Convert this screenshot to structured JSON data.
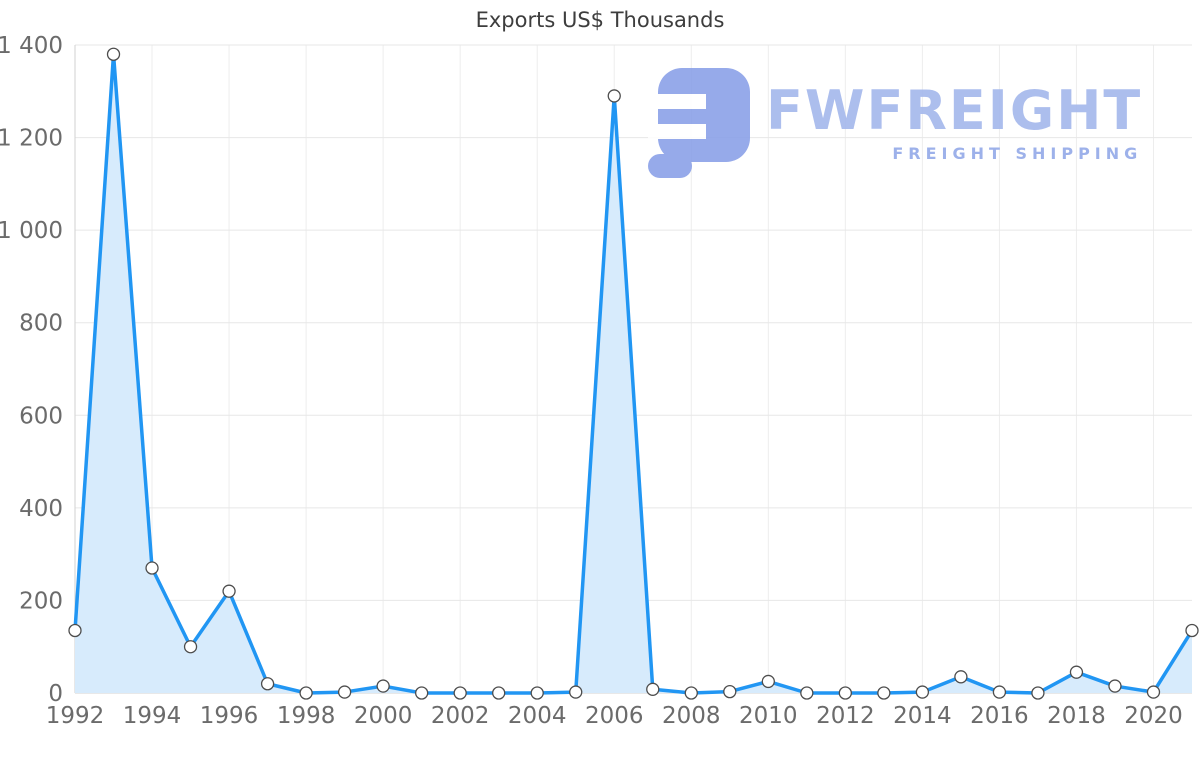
{
  "title": "Exports US$ Thousands",
  "watermark": {
    "brand": "FWFREIGHT",
    "tagline": "FREIGHT SHIPPING"
  },
  "colors": {
    "line": "#2196f3",
    "area": "#d7ebfc",
    "grid": "#e7e7e7",
    "grid_vertical": "#ededed",
    "axis_line": "#d2d2d2",
    "axis_text": "#6b6b6b",
    "title_text": "#3d3d3d",
    "marker_fill": "#ffffff",
    "marker_stroke": "#4d4d4d",
    "logo": "#8ba1e8"
  },
  "chart_data": {
    "type": "area",
    "title": "Exports US$ Thousands",
    "x": [
      1992,
      1993,
      1994,
      1995,
      1996,
      1997,
      1998,
      1999,
      2000,
      2001,
      2002,
      2003,
      2004,
      2005,
      2006,
      2007,
      2008,
      2009,
      2010,
      2011,
      2012,
      2013,
      2014,
      2015,
      2016,
      2017,
      2018,
      2019,
      2020,
      2021
    ],
    "values": [
      135,
      1380,
      270,
      100,
      220,
      20,
      0,
      2,
      15,
      0,
      0,
      0,
      0,
      2,
      1290,
      8,
      0,
      3,
      25,
      0,
      0,
      0,
      2,
      35,
      2,
      0,
      45,
      15,
      2,
      135
    ],
    "xlabel": "",
    "ylabel": "",
    "ylim": [
      0,
      1400
    ],
    "y_ticks": [
      0,
      200,
      400,
      600,
      800,
      1000,
      1200,
      1400
    ],
    "y_tick_labels": [
      "0",
      "200",
      "400",
      "600",
      "800",
      "1 000",
      "1 200",
      "1 400"
    ],
    "x_tick_years": [
      1992,
      1994,
      1996,
      1998,
      2000,
      2002,
      2004,
      2006,
      2008,
      2010,
      2012,
      2014,
      2016,
      2018,
      2020
    ],
    "grid": true,
    "legend": "none",
    "marker": "circle-white"
  }
}
